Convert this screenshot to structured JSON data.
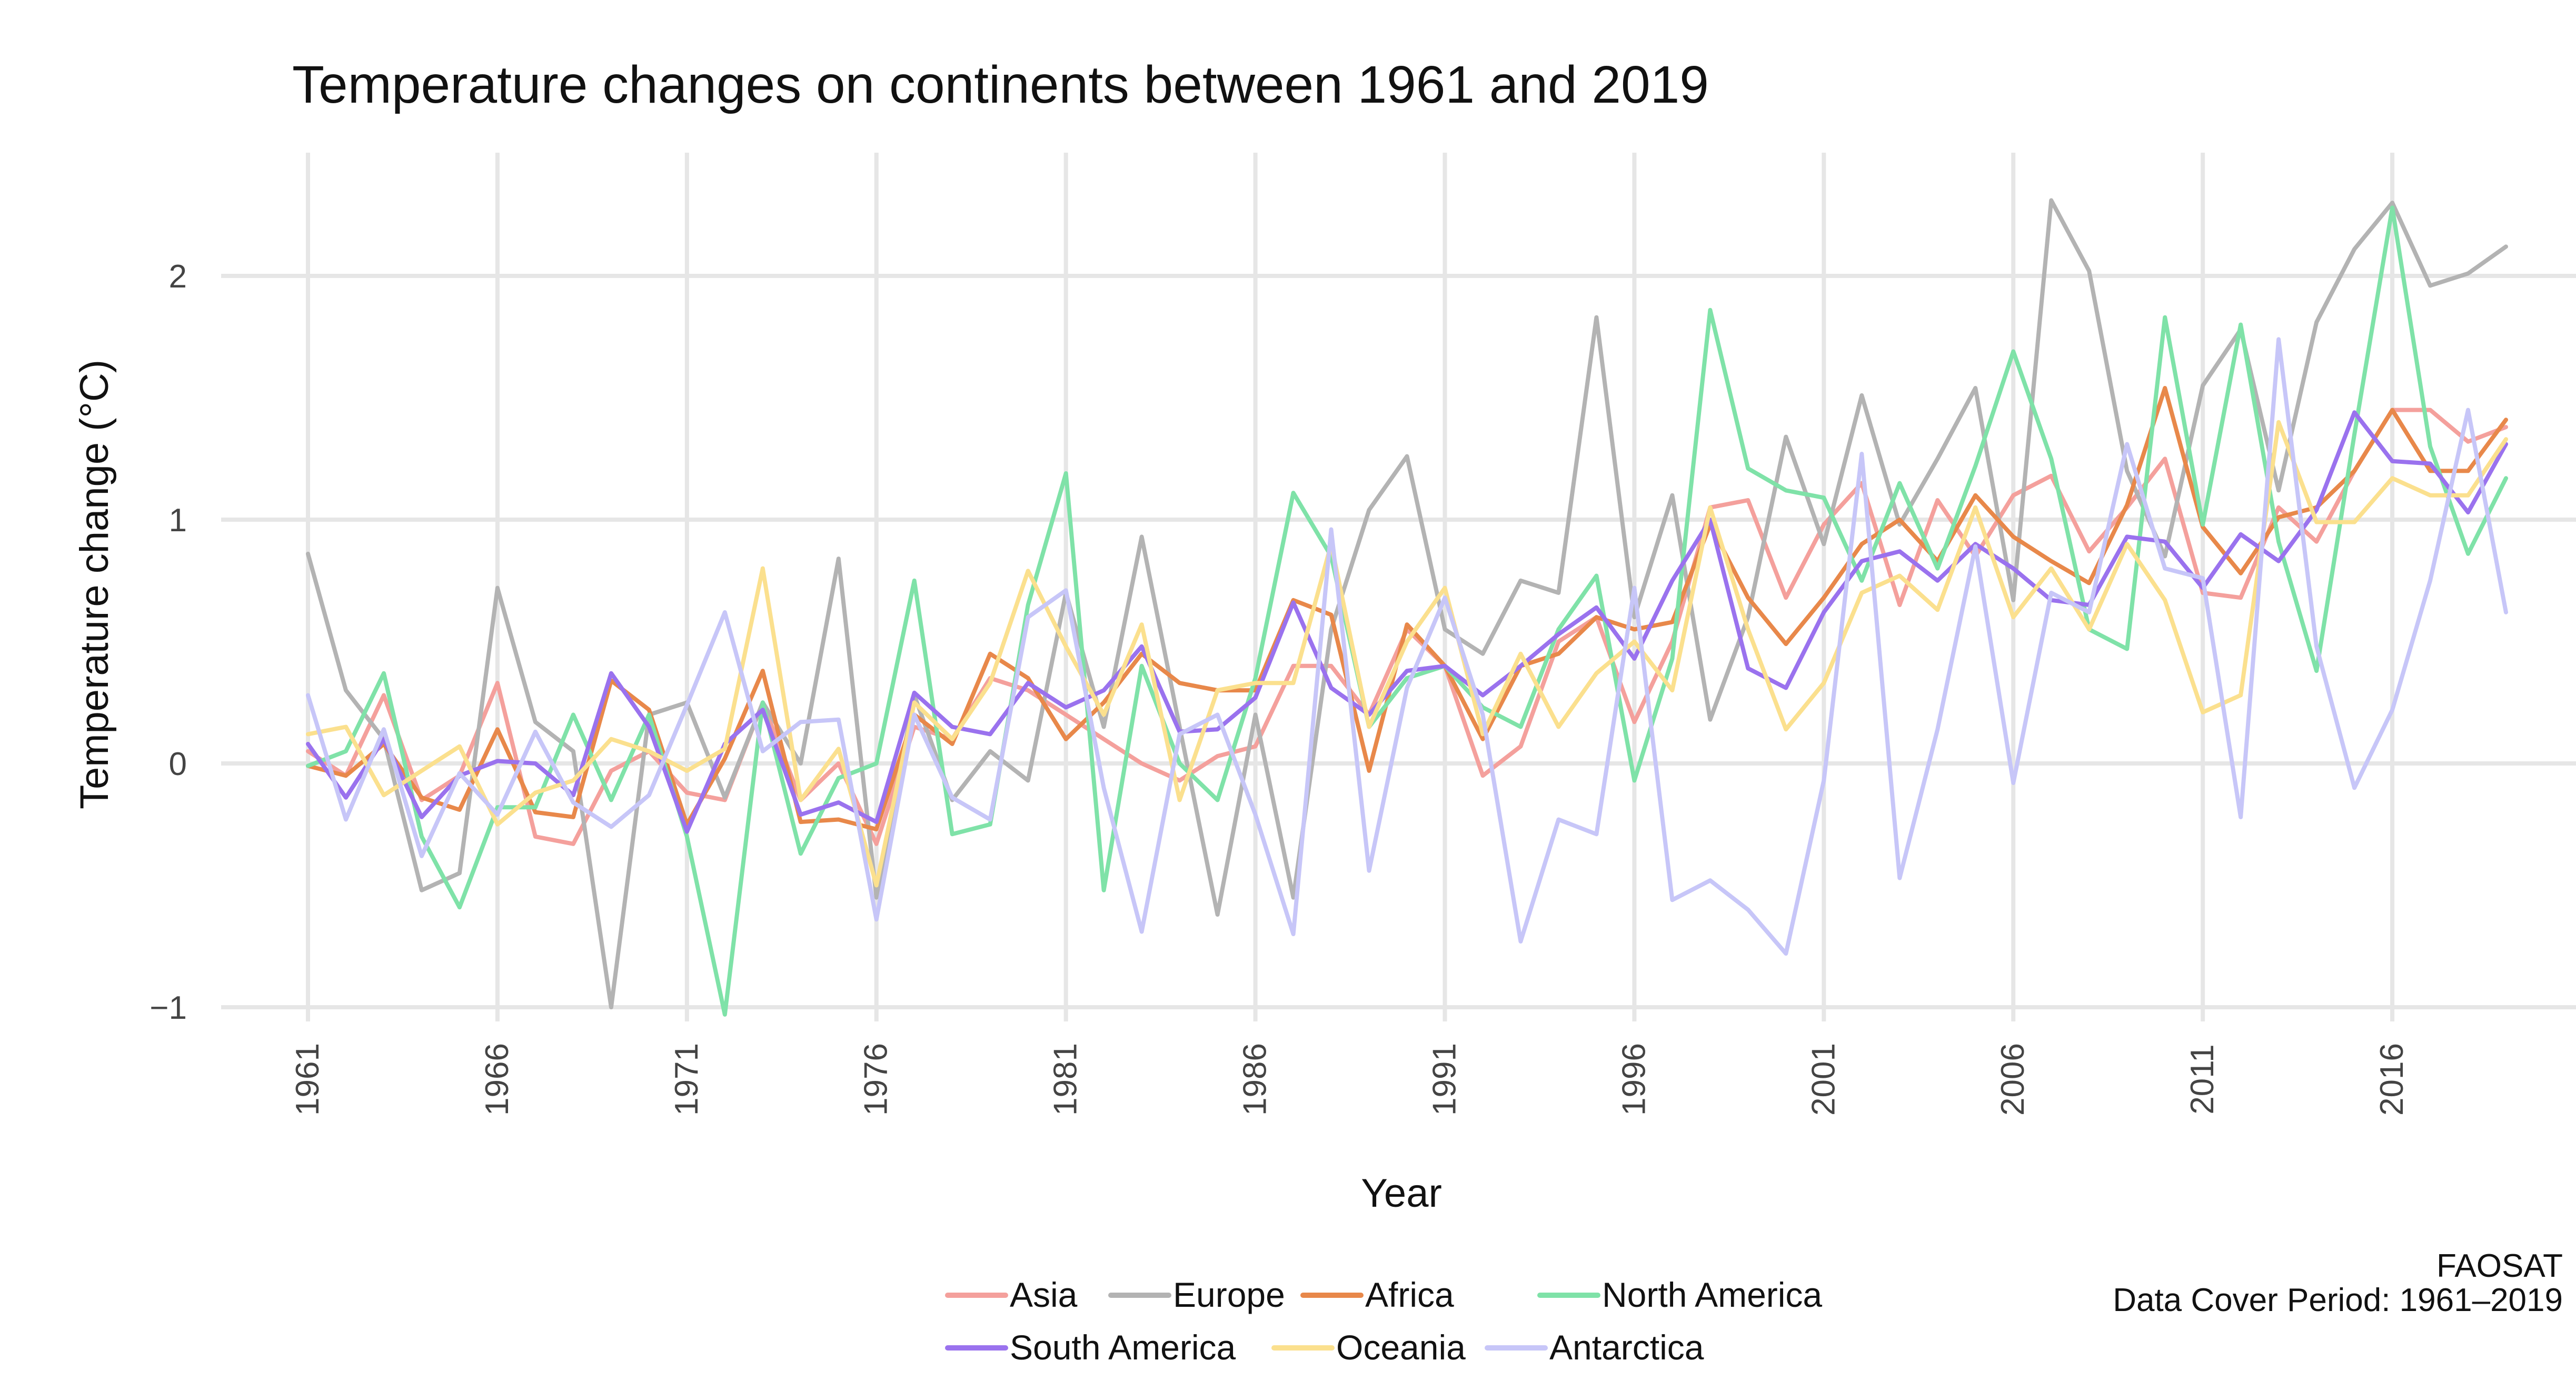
{
  "chart_data": {
    "type": "line",
    "title": "Temperature changes on continents between 1961 and 2019",
    "xlabel": "Year",
    "ylabel": "Temperature change (°C)",
    "caption_lines": [
      "FAOSAT",
      "Data Cover Period: 1961–2019"
    ],
    "xlim": [
      1961,
      2019
    ],
    "ylim": [
      -1.15,
      2.4
    ],
    "x_ticks": [
      1961,
      1966,
      1971,
      1976,
      1981,
      1986,
      1991,
      1996,
      2001,
      2006,
      2011,
      2016
    ],
    "y_ticks": [
      -1,
      0,
      1,
      2
    ],
    "y_tick_labels": [
      "−1",
      "0",
      "1",
      "2"
    ],
    "grid": true,
    "legend_position": "bottom",
    "x": [
      1961,
      1962,
      1963,
      1964,
      1965,
      1966,
      1967,
      1968,
      1969,
      1970,
      1971,
      1972,
      1973,
      1974,
      1975,
      1976,
      1977,
      1978,
      1979,
      1980,
      1981,
      1982,
      1983,
      1984,
      1985,
      1986,
      1987,
      1988,
      1989,
      1990,
      1991,
      1992,
      1993,
      1994,
      1995,
      1996,
      1997,
      1998,
      1999,
      2000,
      2001,
      2002,
      2003,
      2004,
      2005,
      2006,
      2007,
      2008,
      2009,
      2010,
      2011,
      2012,
      2013,
      2014,
      2015,
      2016,
      2017,
      2018,
      2019
    ],
    "series": [
      {
        "name": "Asia",
        "color": "#f4a09c",
        "values": [
          0.05,
          -0.05,
          0.28,
          -0.15,
          -0.05,
          0.33,
          -0.3,
          -0.33,
          -0.03,
          0.05,
          -0.12,
          -0.15,
          0.25,
          -0.15,
          0.0,
          -0.33,
          0.15,
          0.1,
          0.35,
          0.3,
          0.2,
          0.1,
          0.0,
          -0.07,
          0.03,
          0.07,
          0.4,
          0.4,
          0.2,
          0.55,
          0.4,
          -0.05,
          0.07,
          0.5,
          0.6,
          0.17,
          0.5,
          1.05,
          1.08,
          0.68,
          0.98,
          1.15,
          0.65,
          1.08,
          0.85,
          1.1,
          1.18,
          0.87,
          1.05,
          1.25,
          0.7,
          0.68,
          1.05,
          0.91,
          1.2,
          1.45,
          1.45,
          1.32,
          1.38
        ]
      },
      {
        "name": "Europe",
        "color": "#b3b3b3",
        "values": [
          0.86,
          0.3,
          0.1,
          -0.52,
          -0.45,
          0.72,
          0.17,
          0.05,
          -1.0,
          0.2,
          0.25,
          -0.14,
          0.25,
          0.0,
          0.84,
          -0.55,
          0.28,
          -0.15,
          0.05,
          -0.07,
          0.7,
          0.15,
          0.93,
          0.15,
          -0.62,
          0.2,
          -0.55,
          0.55,
          1.04,
          1.26,
          0.55,
          0.45,
          0.75,
          0.7,
          1.83,
          0.6,
          1.1,
          0.18,
          0.6,
          1.34,
          0.9,
          1.51,
          0.98,
          1.25,
          1.54,
          0.67,
          2.31,
          2.02,
          1.2,
          0.85,
          1.55,
          1.78,
          1.12,
          1.81,
          2.11,
          2.3,
          1.96,
          2.01,
          2.12
        ]
      },
      {
        "name": "Africa",
        "color": "#e8884a",
        "values": [
          -0.01,
          -0.05,
          0.08,
          -0.14,
          -0.19,
          0.14,
          -0.2,
          -0.22,
          0.34,
          0.22,
          -0.25,
          0.02,
          0.38,
          -0.24,
          -0.23,
          -0.27,
          0.2,
          0.08,
          0.45,
          0.35,
          0.1,
          0.25,
          0.45,
          0.33,
          0.3,
          0.3,
          0.67,
          0.61,
          -0.03,
          0.57,
          0.4,
          0.1,
          0.4,
          0.45,
          0.6,
          0.55,
          0.58,
          0.98,
          0.68,
          0.49,
          0.68,
          0.9,
          1.0,
          0.83,
          1.1,
          0.93,
          0.83,
          0.74,
          1.06,
          1.54,
          0.97,
          0.78,
          1.01,
          1.05,
          1.2,
          1.45,
          1.2,
          1.2,
          1.41
        ]
      },
      {
        "name": "North America",
        "color": "#7fe2a8",
        "values": [
          -0.01,
          0.05,
          0.37,
          -0.3,
          -0.59,
          -0.18,
          -0.18,
          0.2,
          -0.15,
          0.2,
          -0.3,
          -1.03,
          0.25,
          -0.37,
          -0.06,
          0.0,
          0.75,
          -0.29,
          -0.25,
          0.65,
          1.19,
          -0.52,
          0.4,
          0.0,
          -0.15,
          0.35,
          1.11,
          0.85,
          0.15,
          0.35,
          0.4,
          0.23,
          0.15,
          0.55,
          0.77,
          -0.07,
          0.43,
          1.86,
          1.21,
          1.12,
          1.09,
          0.75,
          1.15,
          0.8,
          1.22,
          1.69,
          1.25,
          0.55,
          0.47,
          1.83,
          0.98,
          1.8,
          0.91,
          0.38,
          1.35,
          2.28,
          1.3,
          0.86,
          1.17
        ]
      },
      {
        "name": "South America",
        "color": "#9a72ee",
        "values": [
          0.08,
          -0.14,
          0.1,
          -0.22,
          -0.05,
          0.01,
          0.0,
          -0.13,
          0.37,
          0.15,
          -0.28,
          0.08,
          0.22,
          -0.21,
          -0.16,
          -0.24,
          0.29,
          0.15,
          0.12,
          0.33,
          0.23,
          0.3,
          0.48,
          0.13,
          0.14,
          0.27,
          0.66,
          0.31,
          0.2,
          0.38,
          0.4,
          0.28,
          0.4,
          0.53,
          0.64,
          0.43,
          0.75,
          1.0,
          0.39,
          0.31,
          0.62,
          0.83,
          0.87,
          0.75,
          0.9,
          0.8,
          0.67,
          0.65,
          0.93,
          0.91,
          0.72,
          0.94,
          0.83,
          1.04,
          1.44,
          1.24,
          1.23,
          1.03,
          1.31
        ]
      },
      {
        "name": "Oceania",
        "color": "#fbe08e",
        "values": [
          0.12,
          0.15,
          -0.13,
          -0.03,
          0.07,
          -0.25,
          -0.12,
          -0.07,
          0.1,
          0.05,
          -0.03,
          0.06,
          0.8,
          -0.15,
          0.06,
          -0.5,
          0.25,
          0.1,
          0.33,
          0.79,
          0.48,
          0.2,
          0.57,
          -0.15,
          0.3,
          0.33,
          0.33,
          0.9,
          0.15,
          0.5,
          0.72,
          0.12,
          0.45,
          0.15,
          0.37,
          0.5,
          0.3,
          1.05,
          0.55,
          0.14,
          0.33,
          0.7,
          0.77,
          0.63,
          1.05,
          0.6,
          0.8,
          0.55,
          0.9,
          0.67,
          0.21,
          0.28,
          1.4,
          0.99,
          0.99,
          1.17,
          1.1,
          1.1,
          1.33
        ]
      },
      {
        "name": "Antarctica",
        "color": "#c7c6f8",
        "values": [
          0.28,
          -0.23,
          0.14,
          -0.38,
          -0.04,
          -0.21,
          0.13,
          -0.16,
          -0.26,
          -0.13,
          0.24,
          0.62,
          0.05,
          0.17,
          0.18,
          -0.64,
          0.2,
          -0.14,
          -0.23,
          0.6,
          0.71,
          -0.1,
          -0.69,
          0.12,
          0.2,
          -0.21,
          -0.7,
          0.96,
          -0.44,
          0.31,
          0.68,
          0.2,
          -0.73,
          -0.23,
          -0.29,
          0.72,
          -0.56,
          -0.48,
          -0.6,
          -0.78,
          -0.07,
          1.27,
          -0.47,
          0.14,
          0.89,
          -0.08,
          0.7,
          0.62,
          1.31,
          0.8,
          0.76,
          -0.22,
          1.74,
          0.48,
          -0.1,
          0.22,
          0.75,
          1.45,
          0.62
        ]
      }
    ]
  }
}
